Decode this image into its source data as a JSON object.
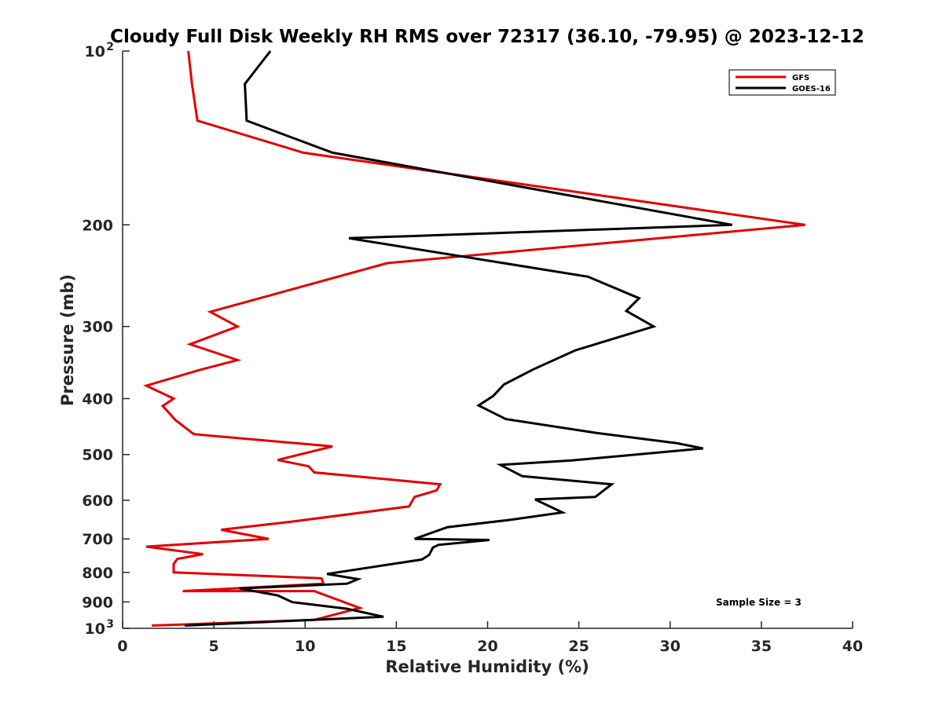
{
  "chart_data": {
    "type": "line",
    "title": "Cloudy Full Disk Weekly RH RMS over 72317 (36.10, -79.95) @ 2023-12-12",
    "xlabel": "Relative Humidity (%)",
    "ylabel": "Pressure (mb)",
    "xlim": [
      0,
      40
    ],
    "ylim": [
      100,
      1000
    ],
    "y_scale": "log",
    "y_reversed": true,
    "x_ticks": [
      0,
      5,
      10,
      15,
      20,
      25,
      30,
      35,
      40
    ],
    "x_tick_labels": [
      "0",
      "5",
      "10",
      "15",
      "20",
      "25",
      "30",
      "35",
      "40"
    ],
    "y_ticks": [
      100,
      200,
      300,
      400,
      500,
      600,
      700,
      800,
      900,
      1000
    ],
    "y_tick_labels": [
      {
        "base": "10",
        "exp": "2"
      },
      {
        "base": "200",
        "exp": ""
      },
      {
        "base": "300",
        "exp": ""
      },
      {
        "base": "400",
        "exp": ""
      },
      {
        "base": "500",
        "exp": ""
      },
      {
        "base": "600",
        "exp": ""
      },
      {
        "base": "700",
        "exp": ""
      },
      {
        "base": "800",
        "exp": ""
      },
      {
        "base": "900",
        "exp": ""
      },
      {
        "base": "10",
        "exp": "3"
      }
    ],
    "grid": false,
    "legend_position": "top-right",
    "annotation": "Sample Size = 3",
    "series": [
      {
        "name": "GFS",
        "color": "#e00000",
        "points": [
          [
            3.6,
            100
          ],
          [
            3.8,
            114
          ],
          [
            4.1,
            132
          ],
          [
            9.9,
            150
          ],
          [
            37.4,
            200
          ],
          [
            14.5,
            233
          ],
          [
            4.8,
            283
          ],
          [
            6.3,
            300
          ],
          [
            3.7,
            322
          ],
          [
            6.3,
            343
          ],
          [
            4.2,
            357
          ],
          [
            1.3,
            380
          ],
          [
            2.8,
            400
          ],
          [
            2.2,
            412
          ],
          [
            2.9,
            436
          ],
          [
            3.9,
            461
          ],
          [
            11.5,
            484
          ],
          [
            8.5,
            511
          ],
          [
            10.2,
            524
          ],
          [
            10.5,
            537
          ],
          [
            17.4,
            563
          ],
          [
            17.2,
            577
          ],
          [
            16.0,
            592
          ],
          [
            15.7,
            615
          ],
          [
            9.2,
            654
          ],
          [
            5.4,
            675
          ],
          [
            8.0,
            700
          ],
          [
            1.3,
            722
          ],
          [
            4.4,
            744
          ],
          [
            3.0,
            758
          ],
          [
            2.8,
            774
          ],
          [
            2.8,
            800
          ],
          [
            10.9,
            819
          ],
          [
            11.0,
            837
          ],
          [
            3.3,
            862
          ],
          [
            10.5,
            862
          ],
          [
            13.0,
            922
          ],
          [
            10.5,
            967
          ],
          [
            1.6,
            989
          ]
        ]
      },
      {
        "name": "GOES-16",
        "color": "#000000",
        "points": [
          [
            8.1,
            100
          ],
          [
            6.7,
            114
          ],
          [
            6.8,
            132
          ],
          [
            11.5,
            150
          ],
          [
            33.4,
            200
          ],
          [
            12.4,
            211
          ],
          [
            25.5,
            246
          ],
          [
            28.3,
            268
          ],
          [
            27.6,
            282
          ],
          [
            29.1,
            300
          ],
          [
            24.8,
            330
          ],
          [
            22.5,
            356
          ],
          [
            20.9,
            378
          ],
          [
            20.3,
            396
          ],
          [
            19.5,
            411
          ],
          [
            21.0,
            434
          ],
          [
            26.0,
            459
          ],
          [
            30.4,
            478
          ],
          [
            31.8,
            488
          ],
          [
            24.6,
            512
          ],
          [
            20.7,
            521
          ],
          [
            21.9,
            545
          ],
          [
            26.8,
            563
          ],
          [
            25.9,
            592
          ],
          [
            22.6,
            598
          ],
          [
            24.1,
            630
          ],
          [
            21.2,
            649
          ],
          [
            17.8,
            668
          ],
          [
            16.0,
            700
          ],
          [
            20.1,
            703
          ],
          [
            17.3,
            717
          ],
          [
            17.0,
            725
          ],
          [
            16.8,
            746
          ],
          [
            16.4,
            760
          ],
          [
            11.2,
            805
          ],
          [
            12.9,
            822
          ],
          [
            12.3,
            837
          ],
          [
            6.4,
            853
          ],
          [
            8.5,
            877
          ],
          [
            9.3,
            901
          ],
          [
            12.3,
            925
          ],
          [
            14.3,
            955
          ],
          [
            3.4,
            989
          ]
        ]
      }
    ]
  }
}
